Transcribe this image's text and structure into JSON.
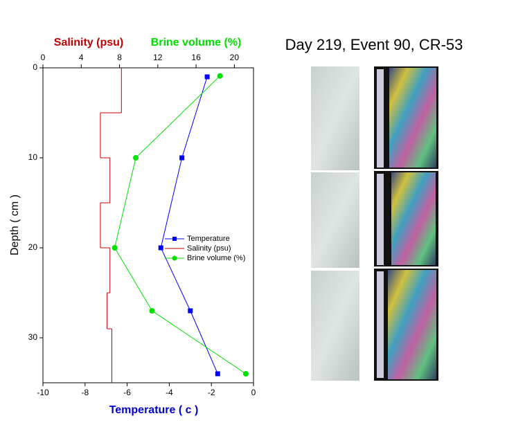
{
  "chart_data": {
    "type": "line",
    "title": "Day 219, Event 90, CR-53",
    "x_label": "Temperature ( c )",
    "x2_label_parts": [
      "Salinity (psu)",
      "Brine volume (%)"
    ],
    "y_label": "Depth ( cm )",
    "xlim": [
      -10,
      0
    ],
    "xticks": [
      -10,
      -8,
      -6,
      -4,
      -2,
      0
    ],
    "x2lim": [
      0,
      22
    ],
    "x2ticks": [
      0,
      4,
      8,
      12,
      16,
      20
    ],
    "ylim": [
      0,
      35
    ],
    "yticks": [
      0,
      10,
      20,
      30
    ],
    "y_inverted": true,
    "series": [
      {
        "name": "Temperature",
        "color": "#0000ff",
        "marker": "square",
        "axis": "x",
        "depth": [
          1,
          10,
          20,
          27,
          34
        ],
        "values": [
          -2.2,
          -3.4,
          -4.4,
          -3.0,
          -1.7
        ]
      },
      {
        "name": "Salinity (psu)",
        "color": "#c00000",
        "marker": "none",
        "axis": "x2",
        "step": true,
        "depth_edges": [
          0,
          5,
          10,
          15,
          20,
          25,
          29,
          35
        ],
        "values": [
          8.2,
          6.0,
          7.0,
          6.0,
          7.0,
          6.7,
          7.2
        ]
      },
      {
        "name": "Brine volume (%)",
        "color": "#00e000",
        "marker": "circle",
        "axis": "x2",
        "depth": [
          0.9,
          10,
          20,
          27,
          34
        ],
        "values": [
          18.5,
          9.7,
          7.5,
          11.4,
          21.2
        ]
      }
    ]
  }
}
